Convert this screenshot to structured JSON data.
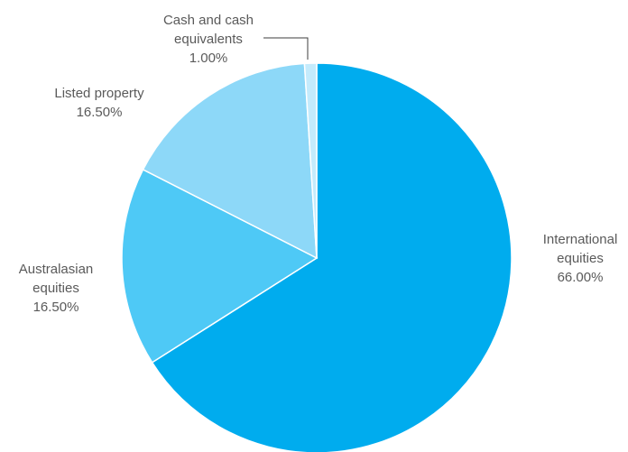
{
  "chart_data": {
    "type": "pie",
    "title": "",
    "slices": [
      {
        "name_lines": [
          "International",
          "equities"
        ],
        "value": 66.0,
        "value_label": "66.00%",
        "color": "#00acee"
      },
      {
        "name_lines": [
          "Australasian",
          "equities"
        ],
        "value": 16.5,
        "value_label": "16.50%",
        "color": "#4ec9f6"
      },
      {
        "name_lines": [
          "Listed property"
        ],
        "value": 16.5,
        "value_label": "16.50%",
        "color": "#8dd8f8"
      },
      {
        "name_lines": [
          "Cash and cash",
          "equivalents"
        ],
        "value": 1.0,
        "value_label": "1.00%",
        "color": "#c4ebfc"
      }
    ],
    "start_angle_deg": 0,
    "direction": "clockwise",
    "legend": "none"
  }
}
